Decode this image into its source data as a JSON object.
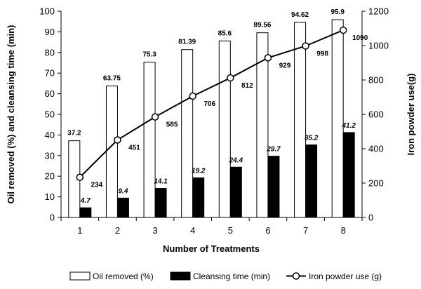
{
  "chart_data": {
    "type": "bar",
    "xlabel": "Number of Treatments",
    "ylabel_left": "Oil removed (%) and cleansing time (min)",
    "ylabel_right": "Iron powder use(g)",
    "categories": [
      "1",
      "2",
      "3",
      "4",
      "5",
      "6",
      "7",
      "8"
    ],
    "ylim_left": [
      0,
      100
    ],
    "yticks_left": [
      "0",
      "10",
      "20",
      "30",
      "40",
      "50",
      "60",
      "70",
      "80",
      "90",
      "100"
    ],
    "ylim_right": [
      0,
      1200
    ],
    "yticks_right": [
      "0",
      "200",
      "400",
      "600",
      "800",
      "1000",
      "1200"
    ],
    "grid": false,
    "legend_position": "bottom",
    "series": [
      {
        "name": "Oil removed (%)",
        "kind": "bar",
        "axis": "left",
        "fill": "#ffffff",
        "values": [
          37.2,
          63.75,
          75.3,
          81.39,
          85.6,
          89.56,
          94.62,
          95.9
        ],
        "labels": [
          "37.2",
          "63.75",
          "75.3",
          "81.39",
          "85.6",
          "89.56",
          "94.62",
          "95.9"
        ]
      },
      {
        "name": "Cleansing time (min)",
        "kind": "bar",
        "axis": "left",
        "fill": "#000000",
        "values": [
          4.7,
          9.4,
          14.1,
          19.2,
          24.4,
          29.7,
          35.2,
          41.2
        ],
        "labels": [
          "4.7",
          "9.4",
          "14.1",
          "19.2",
          "24.4",
          "29.7",
          "35.2",
          "41.2"
        ]
      },
      {
        "name": "Iron powder use (g)",
        "kind": "line",
        "axis": "right",
        "marker": "open-circle",
        "values": [
          234,
          451,
          585,
          706,
          812,
          929,
          998,
          1090
        ],
        "labels": [
          "234",
          "451",
          "585",
          "706",
          "812",
          "929",
          "998",
          "1090"
        ]
      }
    ]
  }
}
